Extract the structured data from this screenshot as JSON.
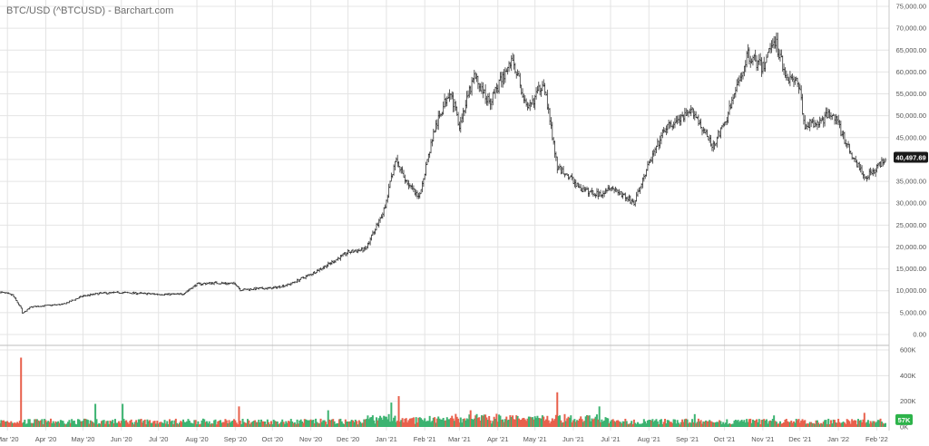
{
  "chart_data": {
    "type": "ohlc-bar-with-volume",
    "title": "BTC/USD (^BTCUSD) - Barchart.com",
    "x_tick_labels": [
      "Mar '20",
      "Apr '20",
      "May '20",
      "Jun '20",
      "Jul '20",
      "Aug '20",
      "Sep '20",
      "Oct '20",
      "Nov '20",
      "Dec '20",
      "Jan '21",
      "Feb '21",
      "Mar '21",
      "Apr '21",
      "May '21",
      "Jun '21",
      "Jul '21",
      "Aug '21",
      "Sep '21",
      "Oct '21",
      "Nov '21",
      "Dec '21",
      "Jan '22",
      "Feb '22"
    ],
    "price_axis": {
      "ylim": [
        0,
        75000
      ],
      "ticks": [
        0,
        5000,
        10000,
        15000,
        20000,
        25000,
        30000,
        35000,
        40000,
        45000,
        50000,
        55000,
        60000,
        65000,
        70000,
        75000
      ],
      "tick_labels": [
        "0.00",
        "5,000.00",
        "10,000.00",
        "15,000.00",
        "20,000.00",
        "25,000.00",
        "30,000.00",
        "35,000.00",
        "40,000.00",
        "45,000.00",
        "50,000.00",
        "55,000.00",
        "60,000.00",
        "65,000.00",
        "70,000.00",
        "75,000.00"
      ]
    },
    "volume_axis": {
      "ylim": [
        0,
        600000
      ],
      "ticks": [
        0,
        200000,
        400000,
        600000
      ],
      "tick_labels": [
        "0K",
        "200K",
        "400K",
        "600K"
      ]
    },
    "last_price": {
      "value": 40497.69,
      "label": "40,497.69"
    },
    "last_volume": {
      "value": 57000,
      "label": "57K"
    },
    "colors": {
      "price_bar": "#333333",
      "volume_up": "#3cb371",
      "volume_down": "#e8604c",
      "grid": "#e4e4e4",
      "last_price_bg": "#1a1a1a",
      "last_volume_bg": "#2db34a"
    },
    "price_series": {
      "interval": "daily",
      "x": [
        "2020-02-24",
        "2020-03-05",
        "2020-03-12",
        "2020-03-13",
        "2020-03-20",
        "2020-04-01",
        "2020-04-15",
        "2020-05-01",
        "2020-05-15",
        "2020-06-01",
        "2020-06-15",
        "2020-07-01",
        "2020-07-20",
        "2020-08-01",
        "2020-08-15",
        "2020-09-01",
        "2020-09-05",
        "2020-09-20",
        "2020-10-01",
        "2020-10-15",
        "2020-11-01",
        "2020-11-15",
        "2020-12-01",
        "2020-12-15",
        "2020-12-31",
        "2021-01-08",
        "2021-01-15",
        "2021-01-27",
        "2021-02-08",
        "2021-02-21",
        "2021-03-01",
        "2021-03-13",
        "2021-03-25",
        "2021-04-13",
        "2021-04-25",
        "2021-05-08",
        "2021-05-19",
        "2021-05-25",
        "2021-06-08",
        "2021-06-22",
        "2021-07-01",
        "2021-07-20",
        "2021-08-01",
        "2021-08-14",
        "2021-09-06",
        "2021-09-21",
        "2021-10-01",
        "2021-10-20",
        "2021-11-01",
        "2021-11-10",
        "2021-11-20",
        "2021-12-01",
        "2021-12-04",
        "2021-12-15",
        "2021-12-27",
        "2022-01-10",
        "2022-01-22",
        "2022-02-01",
        "2022-02-08"
      ],
      "close": [
        9700,
        9000,
        6000,
        4800,
        6300,
        6600,
        6900,
        8800,
        9400,
        9600,
        9400,
        9200,
        9200,
        11500,
        11800,
        11600,
        10200,
        10500,
        10600,
        11500,
        13800,
        16000,
        18800,
        19500,
        29000,
        40000,
        36000,
        31000,
        46000,
        56000,
        48000,
        59000,
        53000,
        63000,
        51000,
        58000,
        38000,
        37000,
        33000,
        32000,
        34000,
        30000,
        39000,
        47000,
        51000,
        43000,
        48000,
        64000,
        61000,
        68000,
        59000,
        57000,
        48000,
        48000,
        51000,
        42000,
        36000,
        38000,
        40500
      ]
    },
    "volume_series": {
      "x": [
        "2020-03-12",
        "2020-05-11",
        "2020-06-02",
        "2020-09-04",
        "2020-11-15",
        "2021-01-05",
        "2021-01-11",
        "2021-03-10",
        "2021-05-19",
        "2021-06-22",
        "2021-09-07",
        "2021-11-10",
        "2022-01-22"
      ],
      "values": [
        540000,
        180000,
        180000,
        160000,
        130000,
        190000,
        240000,
        130000,
        270000,
        160000,
        100000,
        90000,
        110000
      ]
    }
  }
}
